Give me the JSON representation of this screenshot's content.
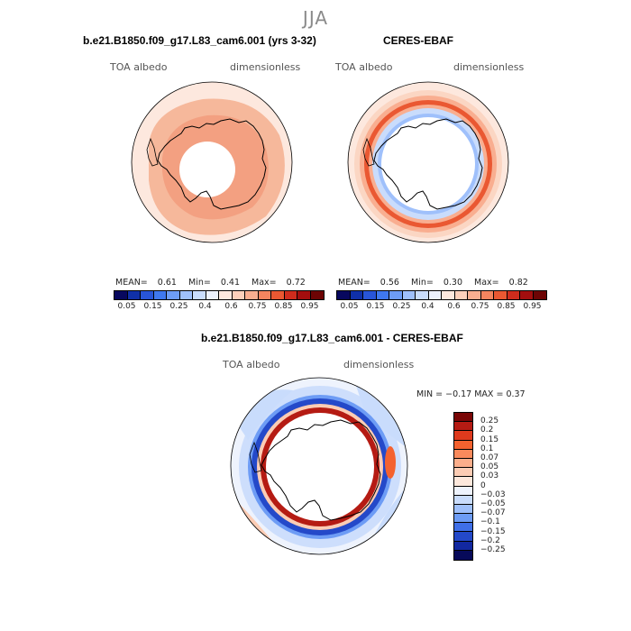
{
  "figure": {
    "title": "JJA"
  },
  "panels": {
    "model": {
      "title": "b.e21.B1850.f09_g17.L83_cam6.001 (yrs 3-32)",
      "field_label": "TOA albedo",
      "units_label": "dimensionless",
      "stats": {
        "mean_label": "MEAN=",
        "mean_value": "0.61",
        "min_label": "Min=",
        "min_value": "0.41",
        "max_label": "Max=",
        "max_value": "0.72"
      }
    },
    "obs": {
      "title": "CERES-EBAF",
      "field_label": "TOA albedo",
      "units_label": "dimensionless",
      "stats": {
        "mean_label": "MEAN=",
        "mean_value": "0.56",
        "min_label": "Min=",
        "min_value": "0.30",
        "max_label": "Max=",
        "max_value": "0.82"
      }
    },
    "diff": {
      "title": "b.e21.B1850.f09_g17.L83_cam6.001 - CERES-EBAF",
      "field_label": "TOA albedo",
      "units_label": "dimensionless",
      "minmax_text": "MIN =  −0.17 MAX =   0.37"
    }
  },
  "colorbars": {
    "albedo": {
      "labels": [
        "0.05",
        "0.15",
        "0.25",
        "0.4",
        "0.6",
        "0.75",
        "0.85",
        "0.95"
      ],
      "colors": [
        "#08085e",
        "#1030a8",
        "#2855d8",
        "#3f78ee",
        "#6d9cf5",
        "#9fc0fb",
        "#c9dcfc",
        "#ecf1fd",
        "#fde8de",
        "#fcd0bb",
        "#f9ae90",
        "#f4855f",
        "#ea5832",
        "#cf2c1d",
        "#a30e0e",
        "#6d0404"
      ]
    },
    "difference": {
      "labels": [
        "0.25",
        "0.2",
        "0.15",
        "0.1",
        "0.07",
        "0.05",
        "0.03",
        "0",
        "−0.03",
        "−0.05",
        "−0.07",
        "−0.1",
        "−0.15",
        "−0.2",
        "−0.25"
      ],
      "colors": [
        "#7a0606",
        "#b51b13",
        "#de3a1d",
        "#f4622f",
        "#f98a5c",
        "#fbae8b",
        "#fcccb4",
        "#fde8dc",
        "#eef3fd",
        "#c9dcfc",
        "#9fc0fb",
        "#6d9cf5",
        "#3f6fe8",
        "#2449c9",
        "#1228a0",
        "#070a5a"
      ]
    }
  }
}
